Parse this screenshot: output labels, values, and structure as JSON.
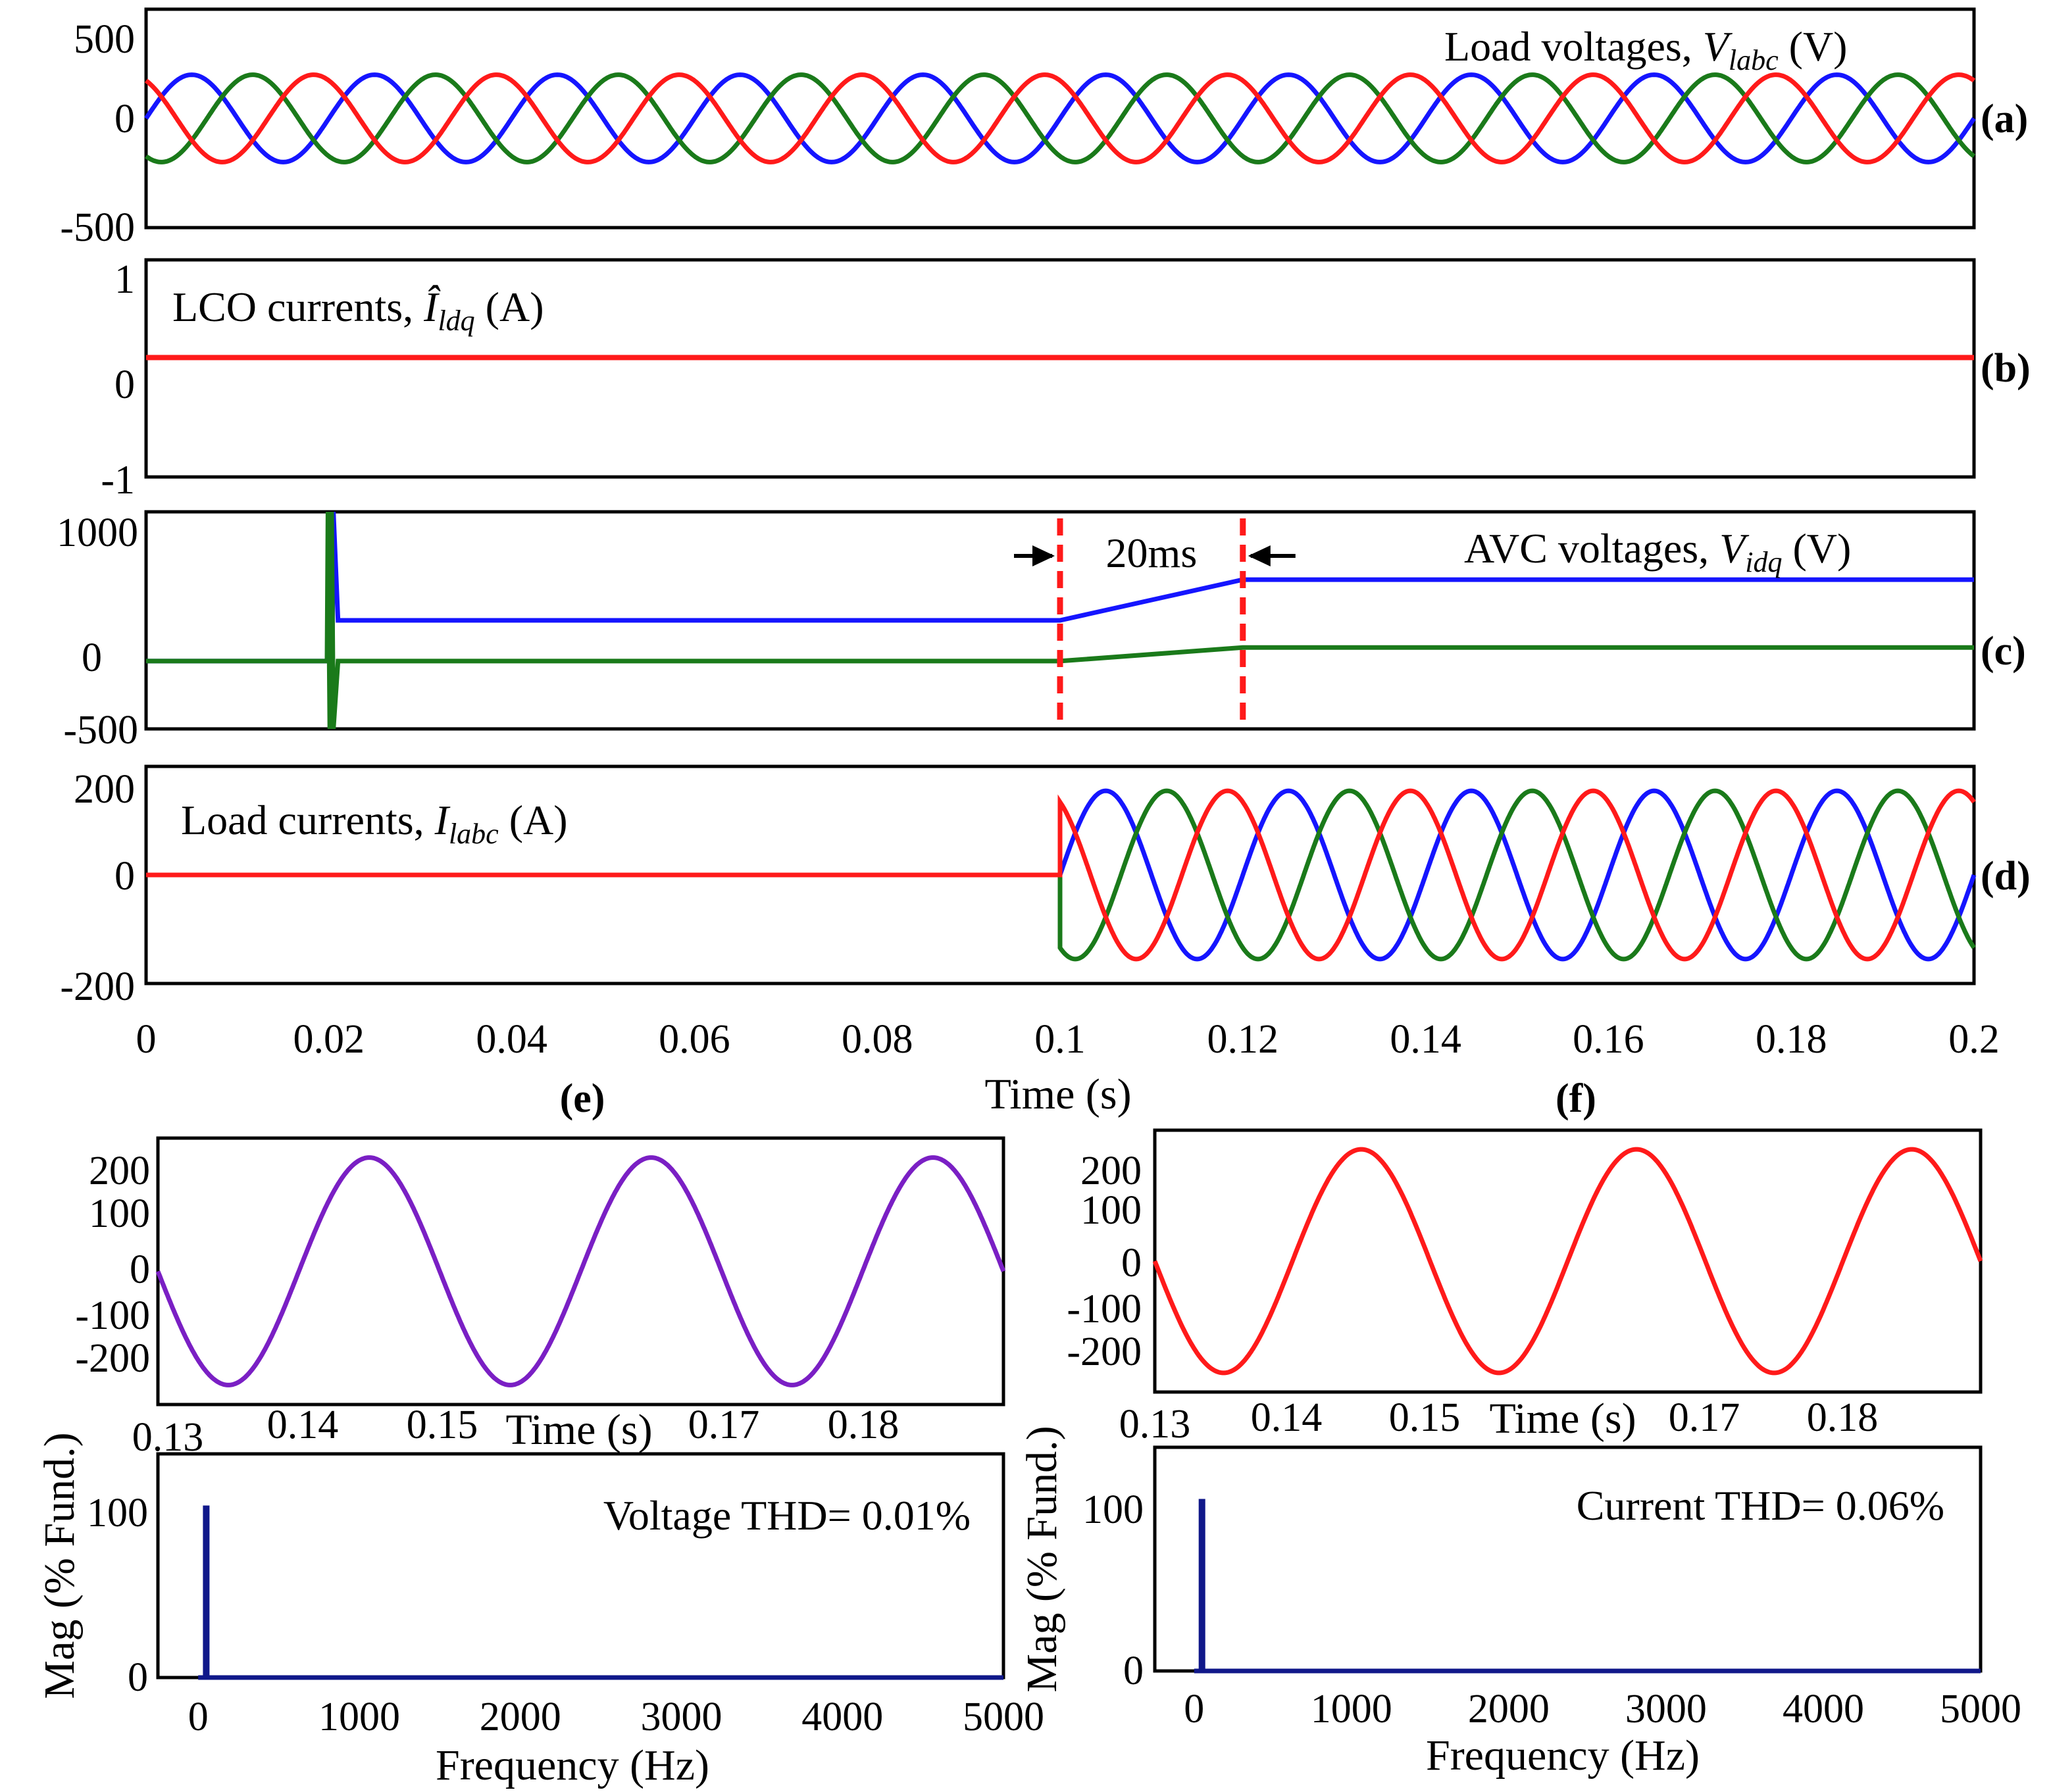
{
  "colors": {
    "blue": "#1515ff",
    "red": "#ff1a1a",
    "green": "#1a7a1a",
    "purple": "#7a1fc4",
    "navy": "#10188a",
    "axis": "#000000"
  },
  "shared_xlabel": "Time (s)",
  "shared_xticks": [
    "0",
    "0.02",
    "0.04",
    "0.06",
    "0.08",
    "0.1",
    "0.12",
    "0.14",
    "0.16",
    "0.18",
    "0.2"
  ],
  "chart_data": [
    {
      "id": "a",
      "type": "line",
      "tag": "(a)",
      "title_text": "Load voltages, ",
      "title_var": "V",
      "title_sub": "labc",
      "title_unit": " (V)",
      "xlim": [
        0,
        0.2
      ],
      "ylim": [
        -500,
        500
      ],
      "yticks": [
        "500",
        "0",
        "-500"
      ],
      "frequency_hz": 50,
      "amplitude": 200,
      "series": [
        {
          "color": "blue",
          "phase_deg": 0
        },
        {
          "color": "green",
          "phase_deg": -120
        },
        {
          "color": "red",
          "phase_deg": 120
        }
      ]
    },
    {
      "id": "b",
      "type": "line",
      "tag": "(b)",
      "title_text": "LCO currents, ",
      "title_var": "Î",
      "title_sub": "ldq",
      "title_unit": " (A)",
      "xlim": [
        0,
        0.2
      ],
      "ylim": [
        -1,
        1
      ],
      "yticks": [
        "1",
        "0",
        "-1"
      ],
      "series": [
        {
          "color": "red",
          "x": [
            0,
            0.2
          ],
          "y": [
            0.1,
            0.1
          ]
        }
      ]
    },
    {
      "id": "c",
      "type": "line",
      "tag": "(c)",
      "title_text": "AVC voltages, ",
      "title_var": "V",
      "title_sub": "idq",
      "title_unit": " (V)",
      "xlim": [
        0,
        0.2
      ],
      "ylim": [
        -500,
        1100
      ],
      "yticks": [
        "1000",
        "0",
        "-500"
      ],
      "annotation": {
        "label": "20ms",
        "x_start": 0.1,
        "x_end": 0.12
      },
      "series": [
        {
          "color": "blue",
          "x": [
            0,
            0.02,
            0.02,
            0.0203,
            0.0205,
            0.021,
            0.05,
            0.06,
            0.1,
            0.12,
            0.2
          ],
          "y": [
            0,
            0,
            1000,
            -500,
            1100,
            300,
            300,
            300,
            300,
            600,
            600
          ]
        },
        {
          "color": "green",
          "x": [
            0,
            0.0198,
            0.0199,
            0.0201,
            0.0203,
            0.0205,
            0.021,
            0.1,
            0.12,
            0.2
          ],
          "y": [
            0,
            0,
            1100,
            -500,
            1100,
            -500,
            0,
            0,
            100,
            100
          ]
        }
      ]
    },
    {
      "id": "d",
      "type": "line",
      "tag": "(d)",
      "title_text": "Load currents, ",
      "title_var": "I",
      "title_sub": "labc",
      "title_unit": " (A)",
      "xlim": [
        0,
        0.2
      ],
      "ylim": [
        -200,
        200
      ],
      "yticks": [
        "200",
        "0",
        "-200"
      ],
      "frequency_hz": 50,
      "amplitude": 155,
      "start_time": 0.1,
      "series": [
        {
          "color": "blue",
          "phase_deg": 0
        },
        {
          "color": "green",
          "phase_deg": -120
        },
        {
          "color": "red",
          "phase_deg": 120
        }
      ]
    },
    {
      "id": "e_wave",
      "type": "line",
      "tag": "(e)",
      "xlabel": "Time (s)",
      "xlim": [
        0.13,
        0.19
      ],
      "ylim": [
        -260,
        260
      ],
      "xticks": [
        "0.13",
        "0.14",
        "0.15",
        "0.17",
        "0.18"
      ],
      "yticks": [
        "200",
        "100",
        "0",
        "-100",
        "-200"
      ],
      "frequency_hz": 50,
      "amplitude": 222,
      "series": [
        {
          "color": "purple",
          "phase_deg": 0
        }
      ]
    },
    {
      "id": "e_fft",
      "type": "bar",
      "xlabel": "Frequency (Hz)",
      "ylabel": "Mag (% Fund.)",
      "xlim": [
        -250,
        5000
      ],
      "ylim": [
        0,
        130
      ],
      "xticks": [
        "0",
        "1000",
        "2000",
        "3000",
        "4000",
        "5000"
      ],
      "yticks": [
        "100",
        "0"
      ],
      "annotation_text": "Voltage THD= 0.01%",
      "bars": [
        {
          "x": 50,
          "y": 100
        }
      ]
    },
    {
      "id": "f_wave",
      "type": "line",
      "tag": "(f)",
      "xlabel": "Time (s)",
      "xlim": [
        0.13,
        0.19
      ],
      "ylim": [
        -260,
        260
      ],
      "xticks": [
        "0.13",
        "0.14",
        "0.15",
        "0.17",
        "0.18"
      ],
      "yticks": [
        "200",
        "100",
        "0",
        "-100",
        "-200"
      ],
      "frequency_hz": 50,
      "amplitude": 222,
      "series": [
        {
          "color": "red",
          "phase_deg": 0
        }
      ]
    },
    {
      "id": "f_fft",
      "type": "bar",
      "xlabel": "Frequency (Hz)",
      "ylabel": "Mag (% Fund.)",
      "xlim": [
        -250,
        5000
      ],
      "ylim": [
        0,
        130
      ],
      "xticks": [
        "0",
        "1000",
        "2000",
        "3000",
        "4000",
        "5000"
      ],
      "yticks": [
        "100",
        "0"
      ],
      "annotation_text": "Current THD= 0.06%",
      "bars": [
        {
          "x": 50,
          "y": 100
        }
      ]
    }
  ]
}
